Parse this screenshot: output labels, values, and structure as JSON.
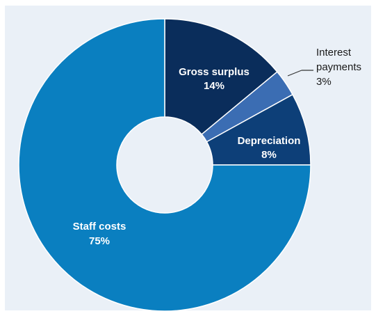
{
  "chart_data": {
    "type": "pie",
    "style": "donut",
    "title": "",
    "slices": [
      {
        "label": "Gross surplus",
        "value": 14,
        "value_label": "14%",
        "color": "#0a2d5b"
      },
      {
        "label": "Interest payments",
        "label_lines": [
          "Interest",
          "payments"
        ],
        "value": 3,
        "value_label": "3%",
        "color": "#3b6db3",
        "label_placement": "outside"
      },
      {
        "label": "Depreciation",
        "value": 8,
        "value_label": "8%",
        "color": "#0d3f78"
      },
      {
        "label": "Staff costs",
        "value": 75,
        "value_label": "75%",
        "color": "#0a7fc0"
      }
    ],
    "start_angle_deg": 0,
    "direction": "clockwise",
    "legend": "none",
    "background_color": "#eaf0f7"
  }
}
